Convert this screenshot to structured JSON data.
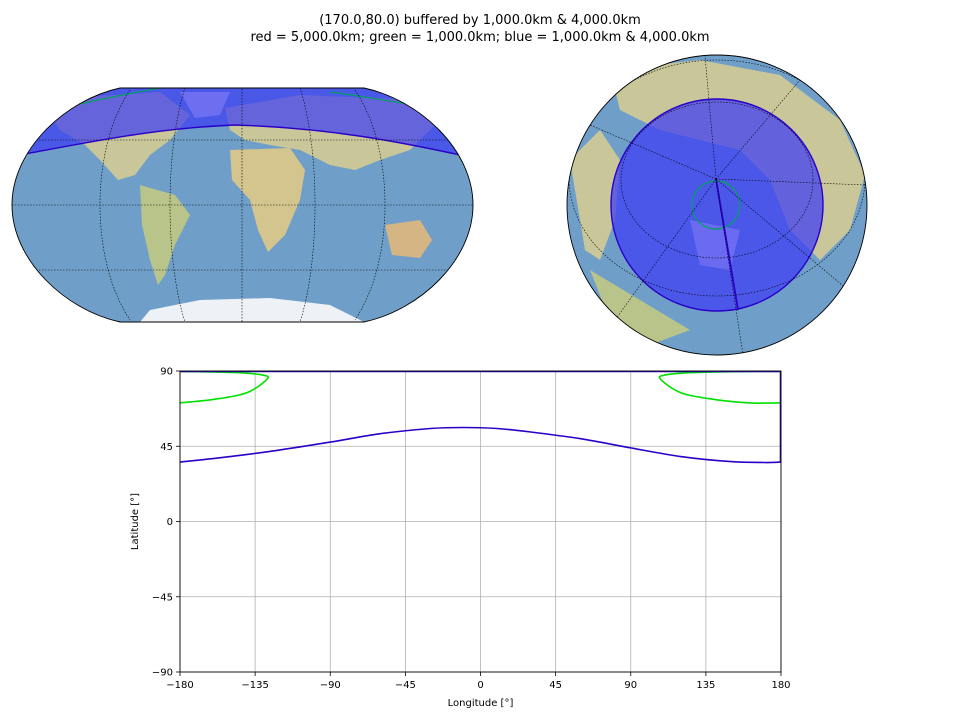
{
  "title_line_1": "(170.0,80.0) buffered by 1,000.0km & 4,000.0km",
  "title_line_2": "red = 5,000.0km; green = 1,000.0km; blue = 1,000.0km & 4,000.0km",
  "colors": {
    "ocean": "#6f9fc9",
    "land": "#c9c79a",
    "ice": "#eef2f6",
    "buffer_fill": "#3b3bf5",
    "buffer_edge": "#2a00c8",
    "green_line": "#00e000",
    "grid": "#b0b0b0"
  },
  "chart_data": [
    {
      "type": "map",
      "projection": "Robinson",
      "center": [
        170.0,
        80.0
      ],
      "features": [
        "buffer polygon (blue)",
        "1000 km circle (green)"
      ]
    },
    {
      "type": "map",
      "projection": "Orthographic",
      "center": [
        170.0,
        80.0
      ],
      "features": [
        "buffer polygon (blue)",
        "1000 km circle (green)"
      ]
    },
    {
      "type": "line",
      "xlabel": "Longitude [°]",
      "ylabel": "Latitude [°]",
      "xlim": [
        -180,
        180
      ],
      "ylim": [
        -90,
        90
      ],
      "xticks": [
        -180,
        -135,
        -90,
        -45,
        0,
        45,
        90,
        135,
        180
      ],
      "yticks": [
        -90,
        -45,
        0,
        45,
        90
      ],
      "xtick_labels": [
        "−180",
        "−135",
        "−90",
        "−45",
        "0",
        "45",
        "90",
        "135",
        "180"
      ],
      "ytick_labels": [
        "−90",
        "−45",
        "0",
        "45",
        "90"
      ],
      "grid": true,
      "series": [
        {
          "color": "#2a00c8",
          "x": [
            -180,
            -150,
            -120,
            -90,
            -60,
            -30,
            -10,
            10,
            30,
            60,
            90,
            120,
            150,
            170,
            180
          ],
          "y": [
            35.5,
            38.8,
            42.8,
            47.5,
            52.5,
            55.6,
            56.2,
            55.6,
            53.5,
            49.5,
            44.0,
            38.8,
            35.8,
            35.3,
            35.5
          ]
        },
        {
          "color": "#00e000",
          "x": [
            -180,
            -160,
            -140,
            -128,
            -130,
            -145,
            -165,
            -180
          ],
          "y": [
            71.0,
            73.0,
            77.0,
            85.0,
            87.5,
            89.0,
            89.5,
            89.7
          ]
        },
        {
          "color": "#00e000",
          "x": [
            180,
            170,
            160,
            140,
            120,
            108,
            110,
            125,
            145,
            165,
            180
          ],
          "y": [
            71.0,
            70.8,
            71.0,
            73.0,
            77.0,
            85.0,
            87.5,
            89.0,
            89.5,
            89.7,
            89.7
          ]
        }
      ]
    }
  ]
}
